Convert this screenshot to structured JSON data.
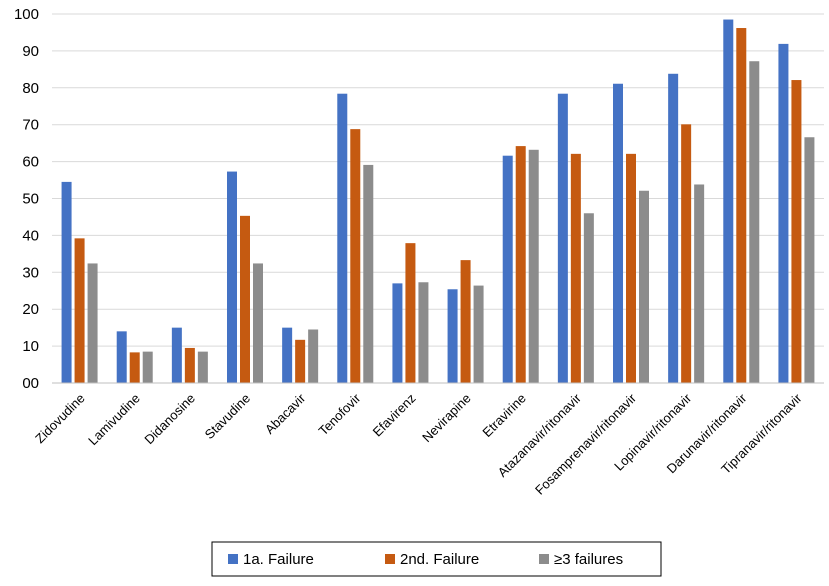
{
  "chart_data": {
    "type": "bar",
    "title": "",
    "xlabel": "",
    "ylabel": "",
    "ylim": [
      0,
      100
    ],
    "yticks": [
      0,
      10,
      20,
      30,
      40,
      50,
      60,
      70,
      80,
      90,
      100
    ],
    "ytick_labels": [
      "00",
      "10",
      "20",
      "30",
      "40",
      "50",
      "60",
      "70",
      "80",
      "90",
      "100"
    ],
    "grid": true,
    "legend_position": "bottom",
    "categories": [
      "Zidovudine",
      "Lamivudine",
      "Didanosine",
      "Stavudine",
      "Abacavir",
      "Tenofovir",
      "Efavirenz",
      "Nevirapine",
      "Etravirine",
      "Atazanavir/ritonavir",
      "Fosamprenavir/ritonavir",
      "Lopinavir/ritonavir",
      "Darunavir/ritonavir",
      "Tipranavir/ritonavir"
    ],
    "series": [
      {
        "name": "1a. Failure",
        "color": "#4472c4",
        "values": [
          54.5,
          14,
          15,
          57.3,
          15,
          78.4,
          27,
          25.4,
          61.6,
          78.4,
          81.1,
          83.8,
          98.5,
          91.9
        ]
      },
      {
        "name": "2nd. Failure",
        "color": "#c55a11",
        "values": [
          39.2,
          8.3,
          9.5,
          45.3,
          11.7,
          68.8,
          37.9,
          33.3,
          64.2,
          62.1,
          62.1,
          70.1,
          96.2,
          82.1
        ]
      },
      {
        "name": "≥3 failures",
        "color": "#8c8c8c",
        "values": [
          32.4,
          8.5,
          8.5,
          32.4,
          14.5,
          59.1,
          27.3,
          26.4,
          63.2,
          46,
          52.1,
          53.8,
          87.2,
          66.6
        ]
      }
    ]
  }
}
